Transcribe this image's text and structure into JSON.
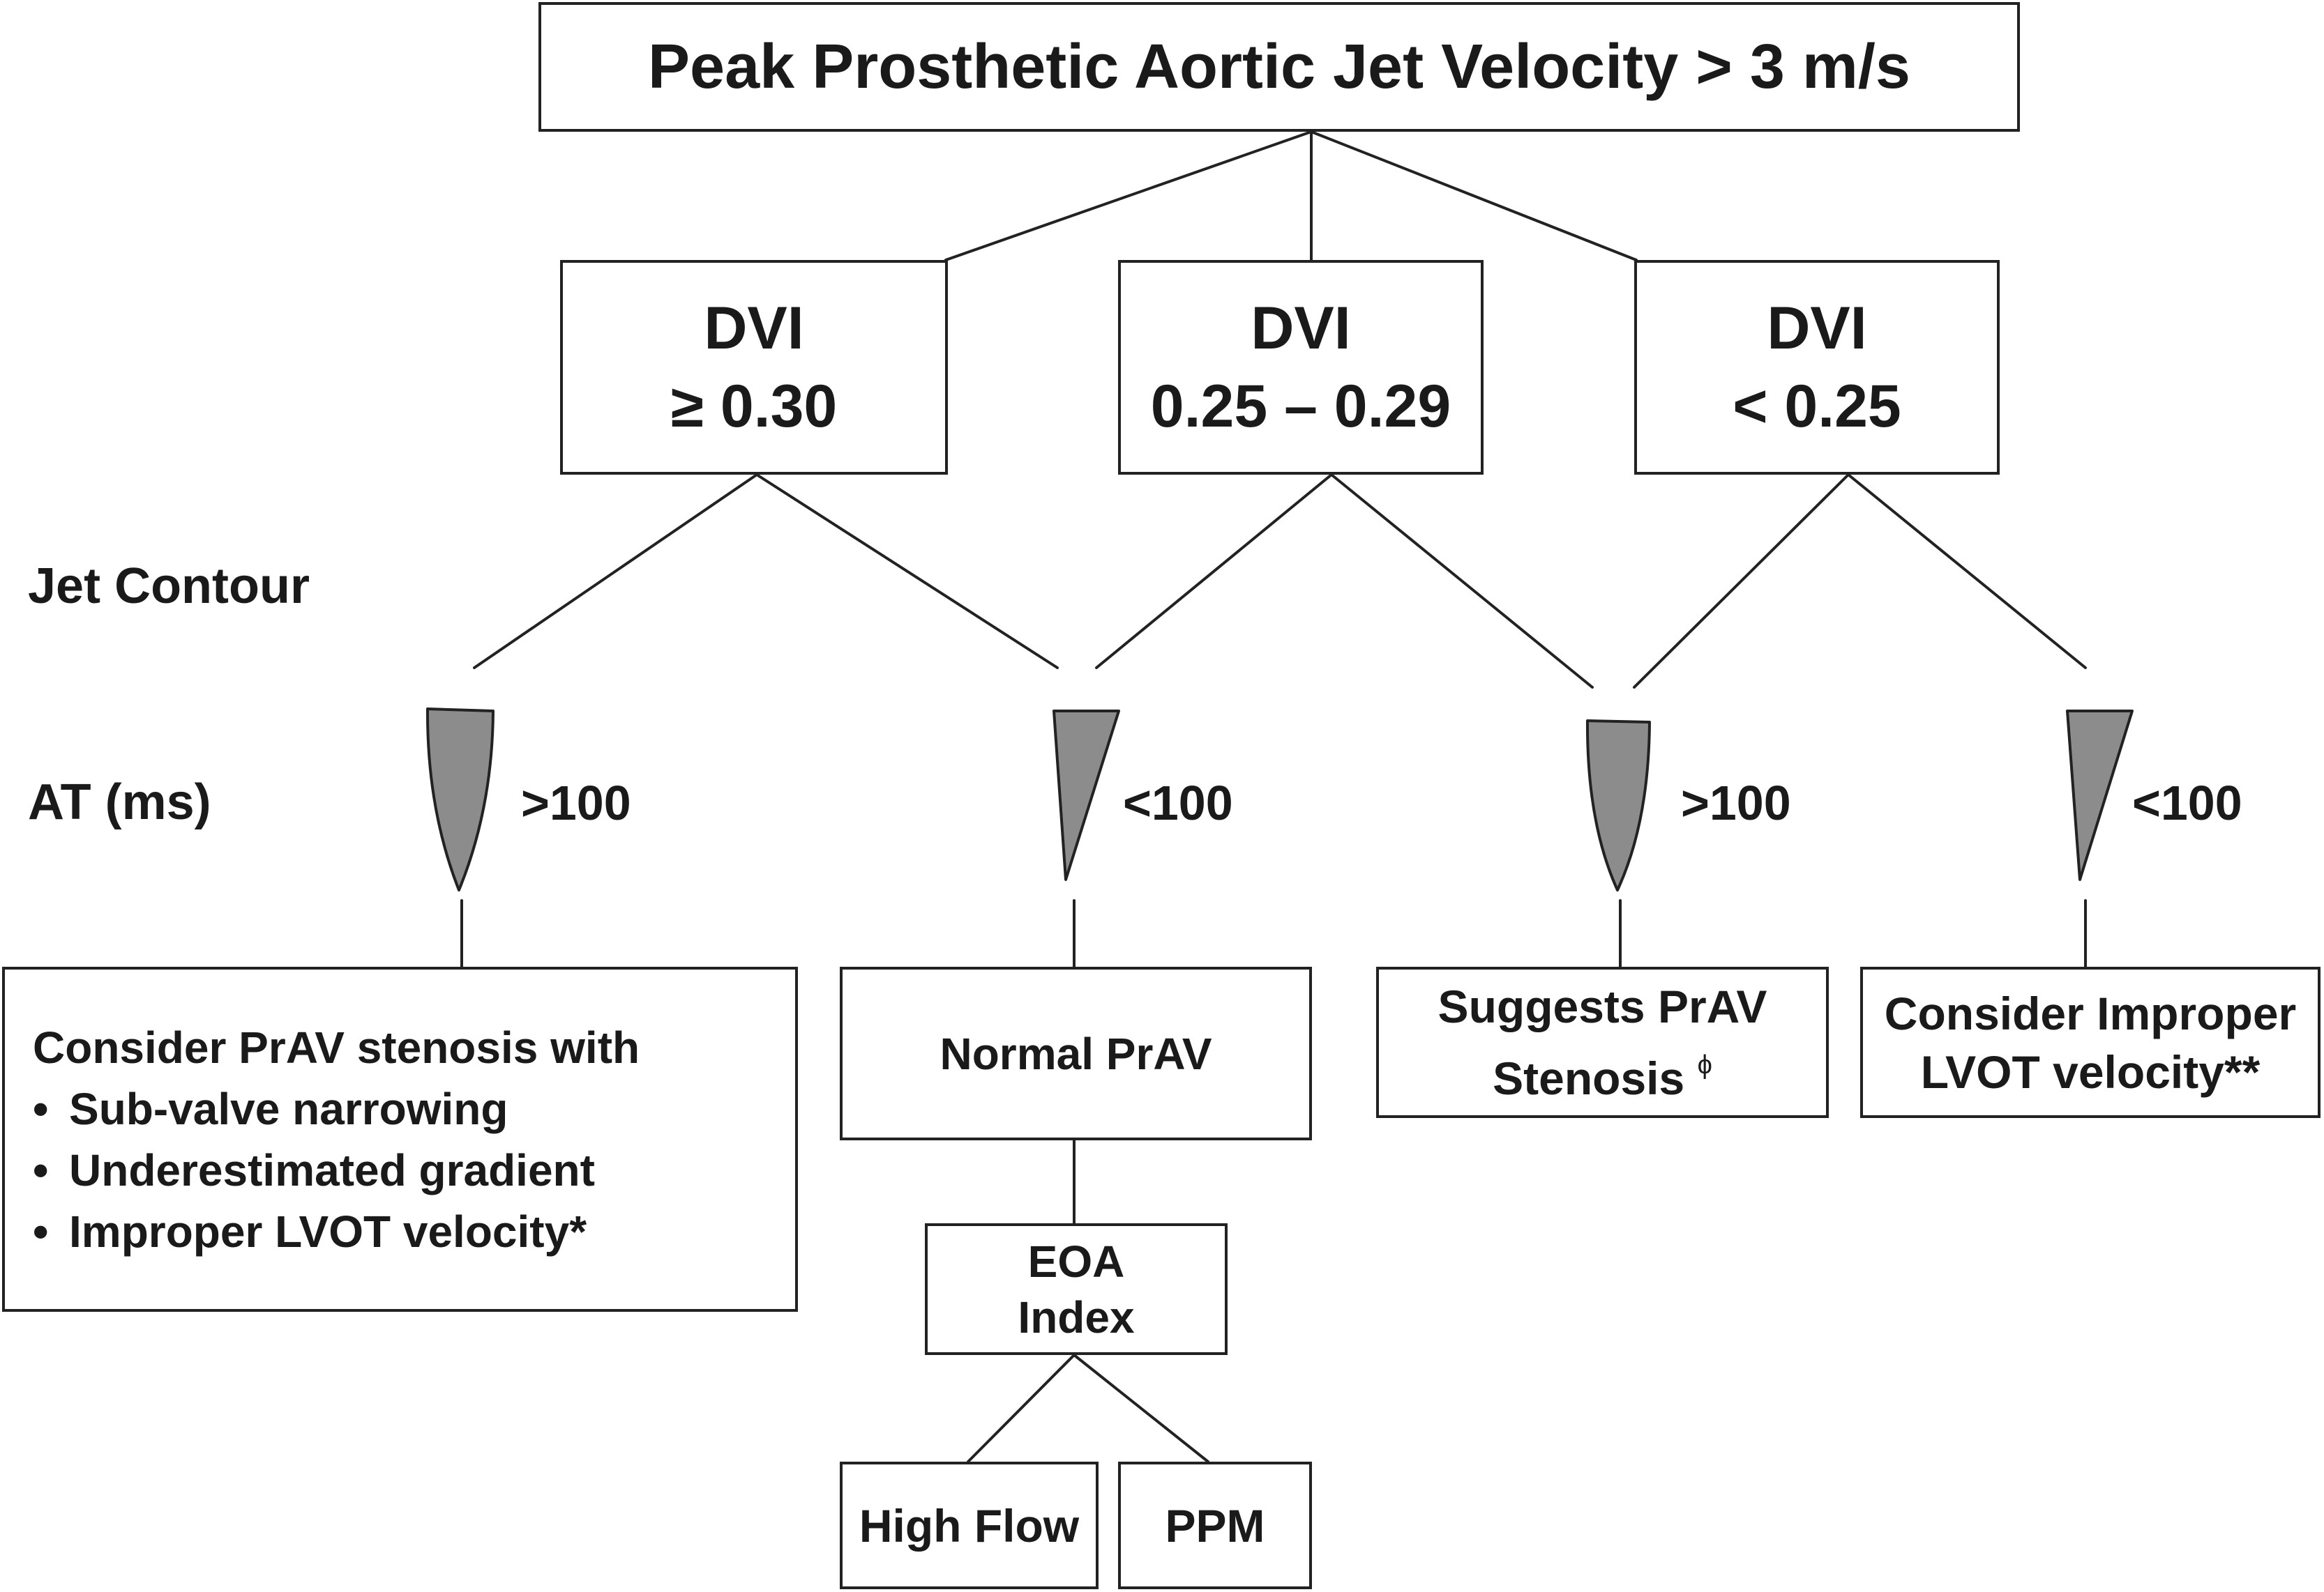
{
  "title": "Peak Prosthetic Aortic Jet Velocity > 3 m/s",
  "side_labels": {
    "jet_contour": "Jet Contour",
    "at": "AT (ms)"
  },
  "dvi_boxes": [
    {
      "label": "DVI",
      "range": "≥ 0.30"
    },
    {
      "label": "DVI",
      "range": "0.25 – 0.29"
    },
    {
      "label": "DVI",
      "range": "< 0.25"
    }
  ],
  "jets": [
    {
      "shape": "rounded",
      "at": ">100"
    },
    {
      "shape": "triangular",
      "at": "<100"
    },
    {
      "shape": "rounded",
      "at": ">100"
    },
    {
      "shape": "triangular",
      "at": "<100"
    }
  ],
  "outcomes": {
    "stenosis_with": {
      "heading": "Consider PrAV stenosis with",
      "items": [
        "Sub-valve narrowing",
        "Underestimated gradient",
        "Improper LVOT velocity*"
      ]
    },
    "normal": "Normal PrAV",
    "suggests": {
      "line1": "Suggests PrAV",
      "line2": "Stenosis",
      "mark": "ϕ"
    },
    "improper": {
      "line1": "Consider Improper",
      "line2": "LVOT velocity**"
    }
  },
  "eoa": {
    "line1": "EOA",
    "line2": "Index"
  },
  "leaves": {
    "high_flow": "High Flow",
    "ppm": "PPM"
  },
  "colors": {
    "line": "#222222",
    "jet_fill": "#8c8c8c"
  }
}
